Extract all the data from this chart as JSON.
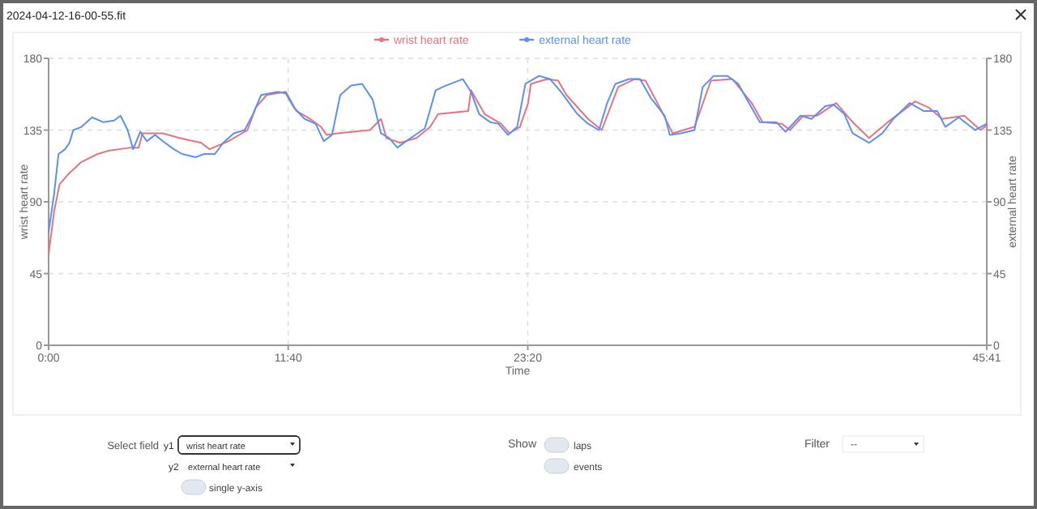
{
  "chart_data": {
    "type": "line",
    "title": "2024-04-12-16-00-55.fit",
    "xlabel": "Time",
    "ylabel": "wrist heart rate",
    "y2label": "external heart rate",
    "xlim": [
      0,
      2741
    ],
    "xticks": [
      {
        "value": 0,
        "label": "0:00"
      },
      {
        "value": 700,
        "label": "11:40"
      },
      {
        "value": 1400,
        "label": "23:20"
      },
      {
        "value": 2741,
        "label": "45:41"
      }
    ],
    "ylim": [
      0,
      180
    ],
    "yticks": [
      0,
      45,
      90,
      135,
      180
    ],
    "y2lim": [
      0,
      180
    ],
    "y2ticks": [
      0,
      45,
      90,
      135,
      180
    ],
    "grid": true,
    "legend": "top",
    "line_style": "solid",
    "annotations": [
      "Select field",
      "y1",
      "wrist heart rate",
      "y2",
      "external heart rate",
      "single y-axis",
      "Show",
      "laps",
      "events",
      "Filter",
      "--"
    ],
    "series": [
      {
        "name": "wrist heart rate",
        "color": "#e8737d",
        "x": [
          0,
          16,
          32,
          56,
          96,
          143,
          175,
          239,
          263,
          274,
          334,
          382,
          446,
          470,
          525,
          581,
          605,
          637,
          693,
          724,
          764,
          796,
          812,
          844,
          939,
          971,
          987,
          1027,
          1075,
          1115,
          1138,
          1226,
          1234,
          1274,
          1322,
          1346,
          1377,
          1401,
          1409,
          1457,
          1489,
          1513,
          1576,
          1616,
          1664,
          1712,
          1744,
          1791,
          1823,
          1887,
          1935,
          1998,
          2054,
          2086,
          2142,
          2166,
          2205,
          2245,
          2301,
          2349,
          2397,
          2452,
          2532,
          2572,
          2611,
          2675,
          2723,
          2741
        ],
        "values": [
          57,
          84,
          101,
          107,
          115,
          120,
          122,
          124,
          124,
          133,
          133,
          130,
          127,
          123,
          128,
          135,
          149,
          157,
          159,
          147,
          142,
          137,
          132,
          133,
          135,
          142,
          130,
          127,
          130,
          137,
          145,
          147,
          160,
          145,
          139,
          133,
          137,
          152,
          164,
          167,
          166,
          157,
          142,
          135,
          162,
          167,
          166,
          147,
          133,
          137,
          166,
          167,
          152,
          140,
          139,
          135,
          144,
          144,
          152,
          140,
          130,
          140,
          153,
          149,
          142,
          144,
          135,
          138
        ]
      },
      {
        "name": "external heart rate",
        "color": "#5b8ff9",
        "x": [
          0,
          16,
          29,
          48,
          61,
          72,
          96,
          127,
          159,
          191,
          210,
          231,
          247,
          268,
          287,
          311,
          334,
          366,
          390,
          430,
          454,
          486,
          510,
          541,
          573,
          597,
          621,
          669,
          693,
          717,
          748,
          780,
          804,
          828,
          852,
          884,
          916,
          947,
          971,
          995,
          1019,
          1051,
          1099,
          1131,
          1162,
          1210,
          1234,
          1258,
          1290,
          1314,
          1342,
          1369,
          1393,
          1433,
          1465,
          1497,
          1545,
          1576,
          1608,
          1632,
          1656,
          1696,
          1728,
          1760,
          1800,
          1815,
          1847,
          1887,
          1911,
          1943,
          1983,
          2015,
          2046,
          2078,
          2126,
          2153,
          2197,
          2229,
          2269,
          2293,
          2325,
          2349,
          2397,
          2436,
          2468,
          2516,
          2556,
          2596,
          2620,
          2659,
          2707,
          2741
        ],
        "values": [
          71,
          95,
          120,
          123,
          127,
          135,
          137,
          143,
          140,
          141,
          144,
          135,
          123,
          134,
          128,
          132,
          128,
          123,
          120,
          118,
          120,
          120,
          127,
          133,
          135,
          145,
          157,
          159,
          158,
          149,
          142,
          139,
          128,
          132,
          157,
          163,
          164,
          154,
          133,
          130,
          124,
          129,
          136,
          160,
          163,
          167,
          159,
          145,
          140,
          139,
          132,
          137,
          164,
          169,
          167,
          159,
          145,
          139,
          135,
          152,
          164,
          167,
          167,
          155,
          144,
          132,
          133,
          135,
          162,
          169,
          169,
          164,
          152,
          140,
          140,
          134,
          144,
          142,
          150,
          151,
          145,
          133,
          127,
          133,
          142,
          152,
          147,
          147,
          137,
          143,
          135,
          139
        ]
      }
    ]
  }
}
